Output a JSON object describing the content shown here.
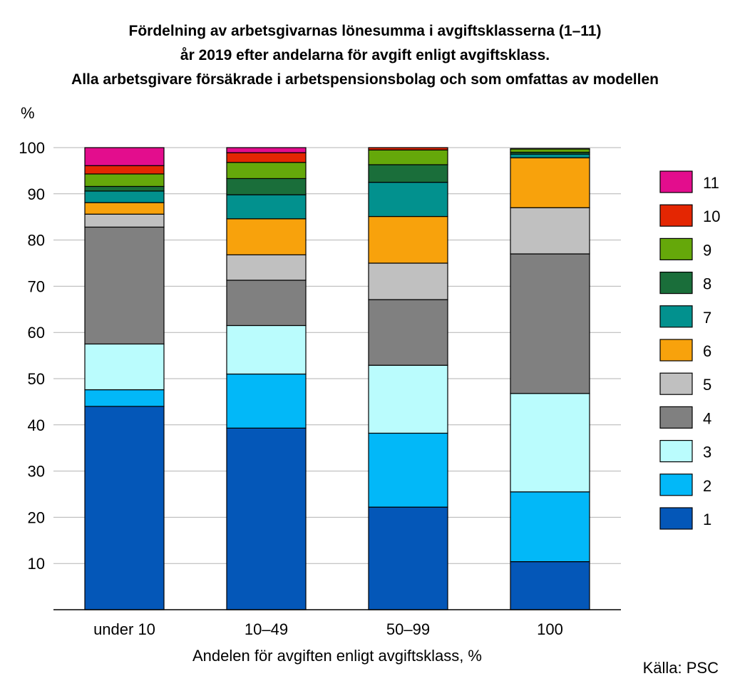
{
  "title_lines": [
    "Fördelning av arbetsgivarnas lönesumma i avgiftsklasserna (1–11)",
    "år 2019 efter andelarna för avgift enligt avgiftsklass.",
    "Alla arbetsgivare försäkrade i arbetspensionsbolag och som omfattas av modellen"
  ],
  "source": "Källa: PSC",
  "chart_data": {
    "type": "bar",
    "stacked": true,
    "title": "Fördelning av arbetsgivarnas lönesumma i avgiftsklasserna (1–11) år 2019 efter andelarna för avgift enligt avgiftsklass. Alla arbetsgivare försäkrade i arbetspensionsbolag och som omfattas av modellen",
    "xlabel": "Andelen för avgiften enligt avgiftsklass, %",
    "ylabel": "%",
    "ylim": [
      0,
      100
    ],
    "yticks": [
      10,
      20,
      30,
      40,
      50,
      60,
      70,
      80,
      90,
      100
    ],
    "grid": true,
    "legend_position": "right",
    "categories": [
      "under 10",
      "10–49",
      "50–99",
      "100"
    ],
    "series": [
      {
        "name": "1",
        "color": "#0457b8",
        "values": [
          44.0,
          39.3,
          22.2,
          10.4
        ]
      },
      {
        "name": "2",
        "color": "#02b8f8",
        "values": [
          3.6,
          11.7,
          16.0,
          15.1
        ]
      },
      {
        "name": "3",
        "color": "#bafcfd",
        "values": [
          9.9,
          10.5,
          14.7,
          21.3
        ]
      },
      {
        "name": "4",
        "color": "#808080",
        "values": [
          25.3,
          9.8,
          14.2,
          30.2
        ]
      },
      {
        "name": "5",
        "color": "#c0c0c0",
        "values": [
          2.8,
          5.5,
          7.9,
          10.0
        ]
      },
      {
        "name": "6",
        "color": "#f8a20c",
        "values": [
          2.5,
          7.8,
          10.1,
          10.8
        ]
      },
      {
        "name": "7",
        "color": "#02918e",
        "values": [
          2.5,
          5.2,
          7.4,
          0.8
        ]
      },
      {
        "name": "8",
        "color": "#1a6e3a",
        "values": [
          1.0,
          3.5,
          3.8,
          0.4
        ]
      },
      {
        "name": "9",
        "color": "#65a80a",
        "values": [
          2.7,
          3.5,
          3.2,
          0.7
        ]
      },
      {
        "name": "10",
        "color": "#e42602",
        "values": [
          1.8,
          2.1,
          0.5,
          0.1
        ]
      },
      {
        "name": "11",
        "color": "#e30d8d",
        "values": [
          3.9,
          1.1,
          0.0,
          0.0
        ]
      }
    ]
  }
}
